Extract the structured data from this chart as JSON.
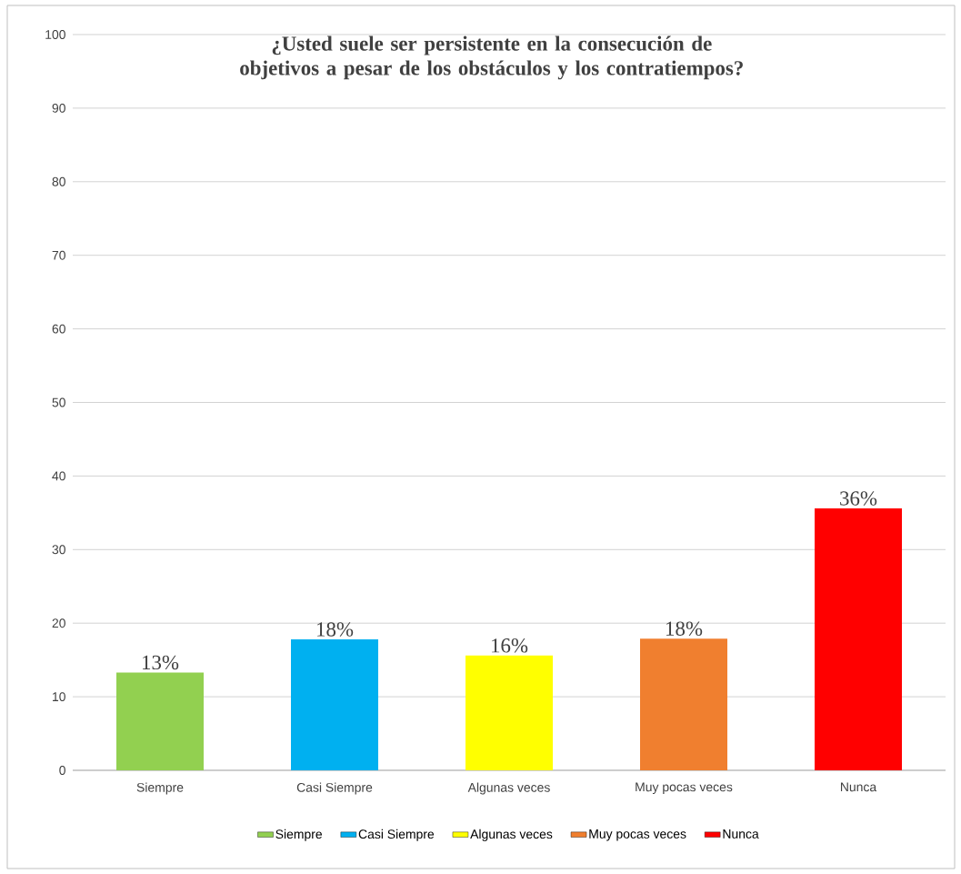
{
  "chart_data": {
    "type": "bar",
    "title": "¿Usted suele ser persistente en la consecución de objetivos a pesar de los obstáculos y los contratiempos?",
    "categories": [
      "Siempre",
      "Casi Siempre",
      "Algunas veces",
      "Muy pocas veces",
      "Nunca"
    ],
    "series": [
      {
        "name": "Siempre",
        "color": "#92d050",
        "values": [
          13.3,
          null,
          null,
          null,
          null
        ],
        "value_labels": [
          "13%",
          null,
          null,
          null,
          null
        ]
      },
      {
        "name": "Casi Siempre",
        "color": "#00b0f0",
        "values": [
          null,
          17.8,
          null,
          null,
          null
        ],
        "value_labels": [
          null,
          "18%",
          null,
          null,
          null
        ]
      },
      {
        "name": "Algunas veces",
        "color": "#ffff00",
        "values": [
          null,
          null,
          15.6,
          null,
          null
        ],
        "value_labels": [
          null,
          null,
          "16%",
          null,
          null
        ]
      },
      {
        "name": "Muy pocas veces",
        "color": "#f07f2f",
        "values": [
          null,
          null,
          null,
          17.9,
          null
        ],
        "value_labels": [
          null,
          null,
          null,
          "18%",
          null
        ]
      },
      {
        "name": "Nunca",
        "color": "#ff0000",
        "values": [
          null,
          null,
          null,
          null,
          35.6
        ],
        "value_labels": [
          null,
          null,
          null,
          null,
          "36%"
        ]
      }
    ],
    "ylim": [
      0,
      100
    ],
    "yticks": [
      0,
      10,
      20,
      30,
      40,
      50,
      60,
      70,
      80,
      90,
      100
    ],
    "grid": "y",
    "legend": "bottom"
  }
}
